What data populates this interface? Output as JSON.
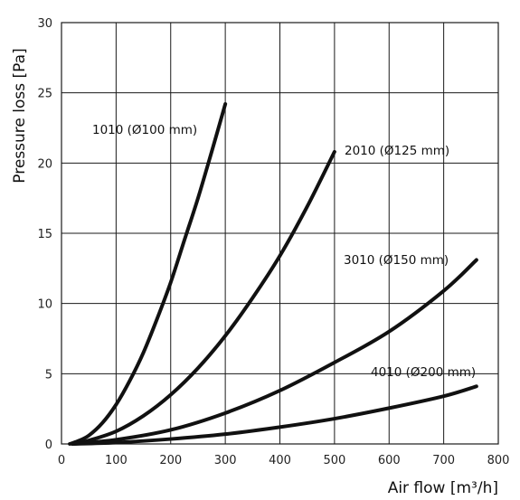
{
  "chart_data": {
    "type": "line",
    "title": "",
    "xlabel": "Air flow [m³/h]",
    "ylabel": "Pressure loss [Pa]",
    "xlim": [
      0,
      800
    ],
    "ylim": [
      0,
      30
    ],
    "xticks": [
      0,
      100,
      200,
      300,
      400,
      500,
      600,
      700,
      800
    ],
    "yticks": [
      0,
      5,
      10,
      15,
      20,
      25,
      30
    ],
    "grid": true,
    "legend": "none",
    "series": [
      {
        "name": "1010 (Ø100 mm)",
        "x": [
          15,
          30,
          50,
          75,
          100,
          125,
          150,
          175,
          200,
          225,
          250,
          275,
          300
        ],
        "y": [
          0.0,
          0.2,
          0.6,
          1.5,
          2.8,
          4.5,
          6.5,
          8.9,
          11.5,
          14.5,
          17.5,
          20.8,
          24.2
        ]
      },
      {
        "name": "2010 (Ø125 mm)",
        "x": [
          20,
          50,
          100,
          150,
          200,
          250,
          300,
          350,
          400,
          450,
          500
        ],
        "y": [
          0.0,
          0.25,
          0.9,
          2.0,
          3.5,
          5.4,
          7.7,
          10.4,
          13.4,
          16.9,
          20.8
        ]
      },
      {
        "name": "3010 (Ø150 mm)",
        "x": [
          20,
          100,
          200,
          300,
          400,
          500,
          600,
          700,
          760
        ],
        "y": [
          0.0,
          0.3,
          1.0,
          2.2,
          3.8,
          5.8,
          8.0,
          10.9,
          13.1
        ]
      },
      {
        "name": "4010 (Ø200 mm)",
        "x": [
          20,
          100,
          200,
          300,
          400,
          500,
          600,
          700,
          760
        ],
        "y": [
          0.0,
          0.1,
          0.35,
          0.7,
          1.2,
          1.8,
          2.55,
          3.4,
          4.1
        ]
      }
    ]
  }
}
